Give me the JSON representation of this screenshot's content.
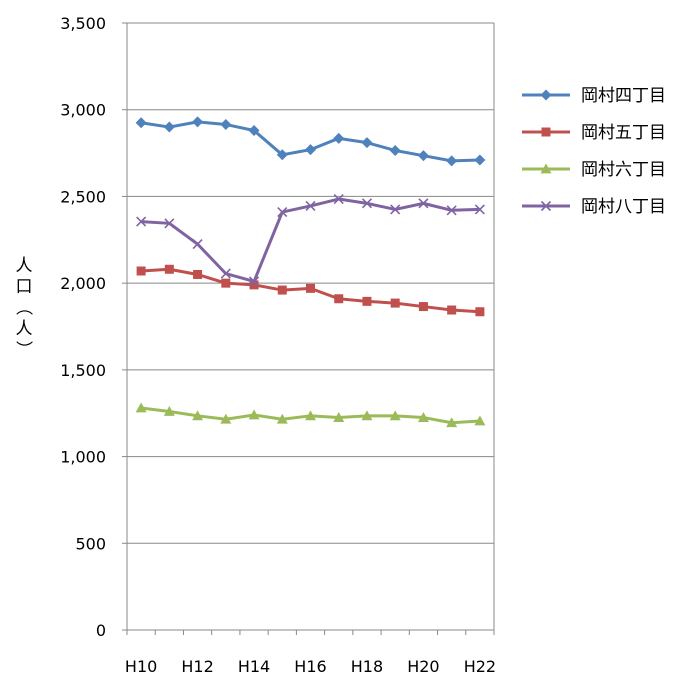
{
  "chart_data": {
    "type": "line",
    "title": "",
    "xlabel": "",
    "ylabel": "人口（人）",
    "ylim": [
      0,
      3500
    ],
    "yticks": [
      "0",
      "500",
      "1,000",
      "1,500",
      "2,000",
      "2,500",
      "3,000",
      "3,500"
    ],
    "ytick_values": [
      0,
      500,
      1000,
      1500,
      2000,
      2500,
      3000,
      3500
    ],
    "x": [
      "H10",
      "H11",
      "H12",
      "H13",
      "H14",
      "H15",
      "H16",
      "H17",
      "H18",
      "H19",
      "H20",
      "H21",
      "H22"
    ],
    "xtick_labels": [
      "H10",
      "H12",
      "H14",
      "H16",
      "H18",
      "H20",
      "H22"
    ],
    "grid": true,
    "legend_position": "right",
    "series": [
      {
        "name": "岡村四丁目",
        "color": "#4f81bd",
        "marker": "diamond",
        "values": [
          2925,
          2900,
          2930,
          2915,
          2880,
          2740,
          2770,
          2835,
          2810,
          2765,
          2735,
          2705,
          2710
        ]
      },
      {
        "name": "岡村五丁目",
        "color": "#c0504d",
        "marker": "square",
        "values": [
          2070,
          2080,
          2050,
          2000,
          1990,
          1960,
          1970,
          1910,
          1895,
          1885,
          1865,
          1845,
          1835
        ]
      },
      {
        "name": "岡村六丁目",
        "color": "#9bbb59",
        "marker": "triangle",
        "values": [
          1280,
          1260,
          1235,
          1215,
          1240,
          1215,
          1235,
          1225,
          1235,
          1235,
          1225,
          1195,
          1205
        ]
      },
      {
        "name": "岡村八丁目",
        "color": "#8064a2",
        "marker": "x",
        "values": [
          2355,
          2345,
          2225,
          2055,
          2010,
          2410,
          2445,
          2485,
          2460,
          2425,
          2460,
          2420,
          2425
        ]
      }
    ]
  }
}
